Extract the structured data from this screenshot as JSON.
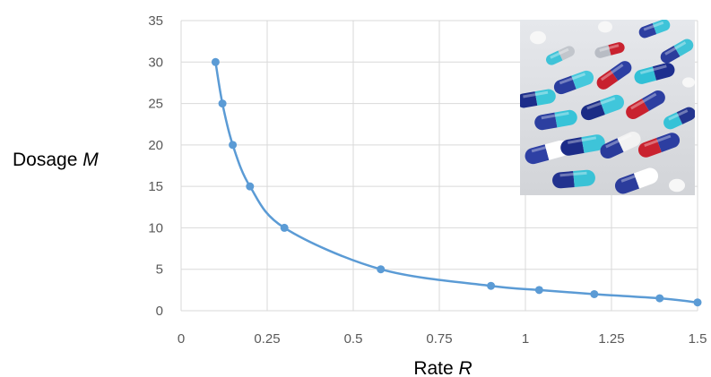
{
  "chart_data": {
    "type": "scatter",
    "series": [
      {
        "x": [
          0.1,
          0.12,
          0.15,
          0.2,
          0.3,
          0.58,
          0.9,
          1.04,
          1.2,
          1.39,
          1.5
        ],
        "y": [
          30,
          25,
          20,
          15,
          10,
          5,
          3,
          2.5,
          2,
          1.5,
          1
        ]
      }
    ],
    "xlabel": {
      "text": "Rate ",
      "variable": "R"
    },
    "ylabel": {
      "text": "Dosage ",
      "variable": "M"
    },
    "xlim": [
      0,
      1.5
    ],
    "ylim": [
      0,
      35
    ],
    "xticks": [
      0,
      0.25,
      0.5,
      0.75,
      1,
      1.25,
      1.5
    ],
    "xtick_labels": [
      "0",
      "0.25",
      "0.5",
      "0.75",
      "1",
      "1.25",
      "1.5"
    ],
    "yticks": [
      0,
      5,
      10,
      15,
      20,
      25,
      30,
      35
    ],
    "ytick_labels": [
      "0",
      "5",
      "10",
      "15",
      "20",
      "25",
      "30",
      "35"
    ],
    "grid": true,
    "line": "smooth",
    "markers": true,
    "colors": {
      "series": "#5b9bd5",
      "grid": "#d9d9d9",
      "tick_text": "#595959"
    }
  },
  "image": {
    "subject": "pills-capsules-photo"
  }
}
